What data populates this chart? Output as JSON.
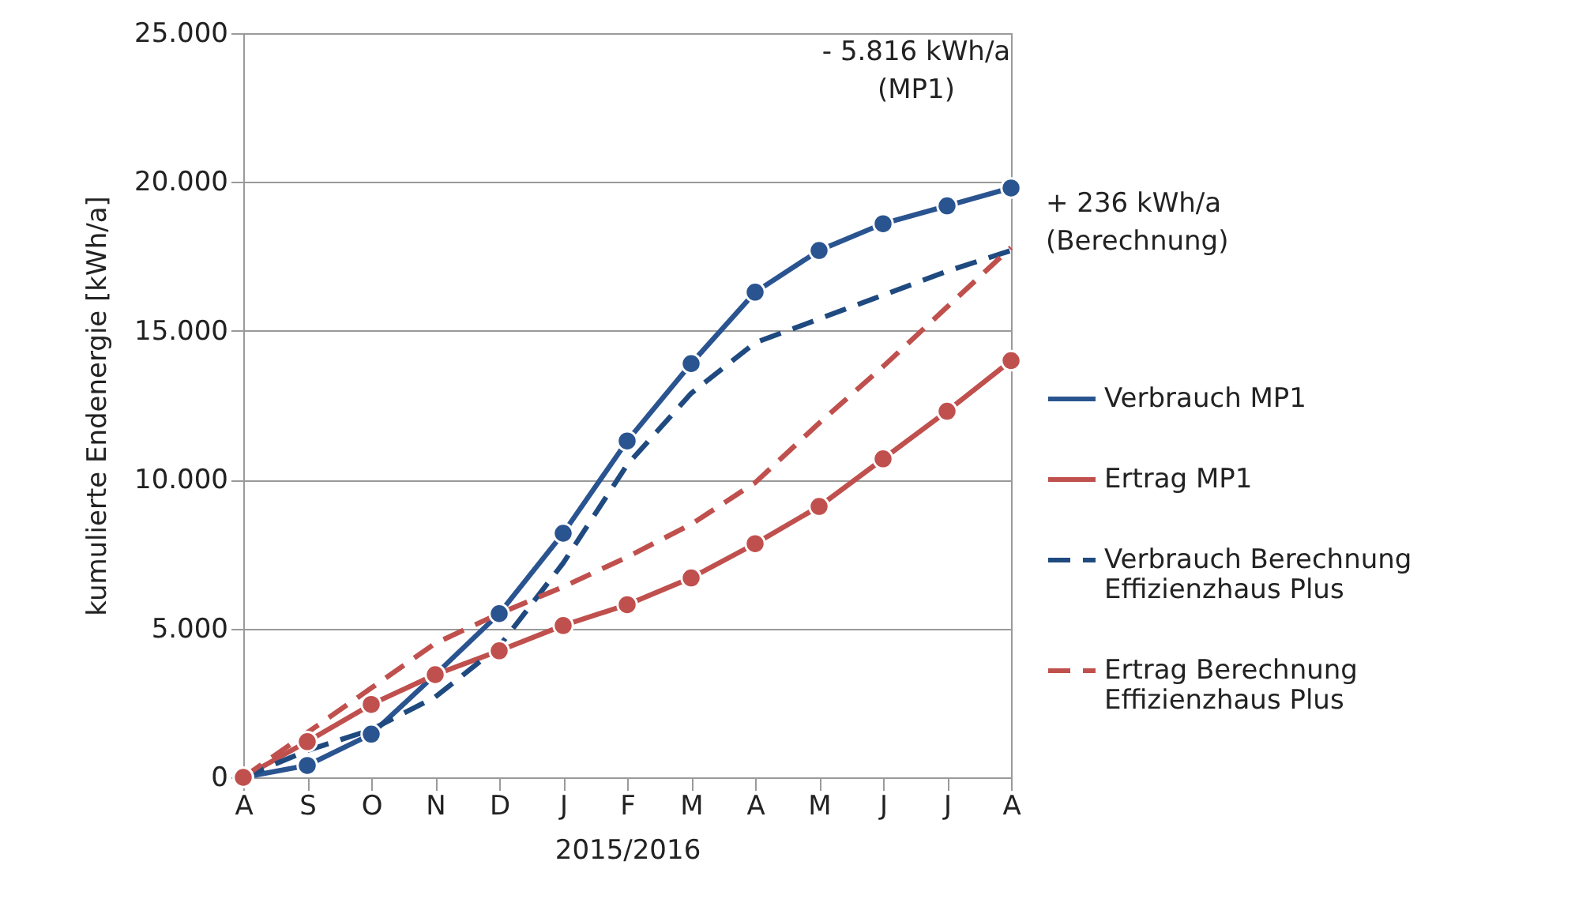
{
  "chart_data": {
    "type": "line",
    "xlabel": "2015/2016",
    "ylabel": "kumulierte Endenergie [kWh/a]",
    "categories": [
      "A",
      "S",
      "O",
      "N",
      "D",
      "J",
      "F",
      "M",
      "A",
      "M",
      "J",
      "J",
      "A"
    ],
    "ylim": [
      0,
      25000
    ],
    "yticks": [
      {
        "value": 0,
        "label": "0"
      },
      {
        "value": 5000,
        "label": "5.000"
      },
      {
        "value": 10000,
        "label": "10.000"
      },
      {
        "value": 15000,
        "label": "15.000"
      },
      {
        "value": 20000,
        "label": "20.000"
      },
      {
        "value": 25000,
        "label": "25.000"
      }
    ],
    "grid": "y",
    "legend": "right",
    "series": [
      {
        "name": "Verbrauch MP1",
        "color": "#2a5490",
        "marker": "circle",
        "line_style": "solid",
        "values": [
          0,
          400,
          1450,
          3450,
          5500,
          8200,
          11300,
          13900,
          16300,
          17700,
          18600,
          19200,
          19800
        ]
      },
      {
        "name": "Ertrag MP1",
        "color": "#c0504d",
        "marker": "circle",
        "line_style": "solid",
        "values": [
          0,
          1200,
          2450,
          3450,
          4250,
          5100,
          5800,
          6700,
          7850,
          9100,
          10700,
          12300,
          14000
        ]
      },
      {
        "name": "Verbrauch Berechnung Effizienzhaus Plus",
        "color": "#1f4a80",
        "marker": "none",
        "line_style": "dashed",
        "values": [
          0,
          900,
          1600,
          2700,
          4400,
          7200,
          10500,
          12900,
          14600,
          15400,
          16200,
          17000,
          17700
        ]
      },
      {
        "name": "Ertrag  Berechnung Effizienzhaus Plus",
        "color": "#c0504d",
        "marker": "none",
        "line_style": "dashed",
        "values": [
          0,
          1500,
          3000,
          4500,
          5500,
          6400,
          7400,
          8500,
          9900,
          11900,
          13800,
          15800,
          17800
        ]
      }
    ],
    "annotations": [
      "- 5.816 kWh/a\n(MP1)",
      "+ 236 kWh/a\n(Berechnung)"
    ]
  }
}
